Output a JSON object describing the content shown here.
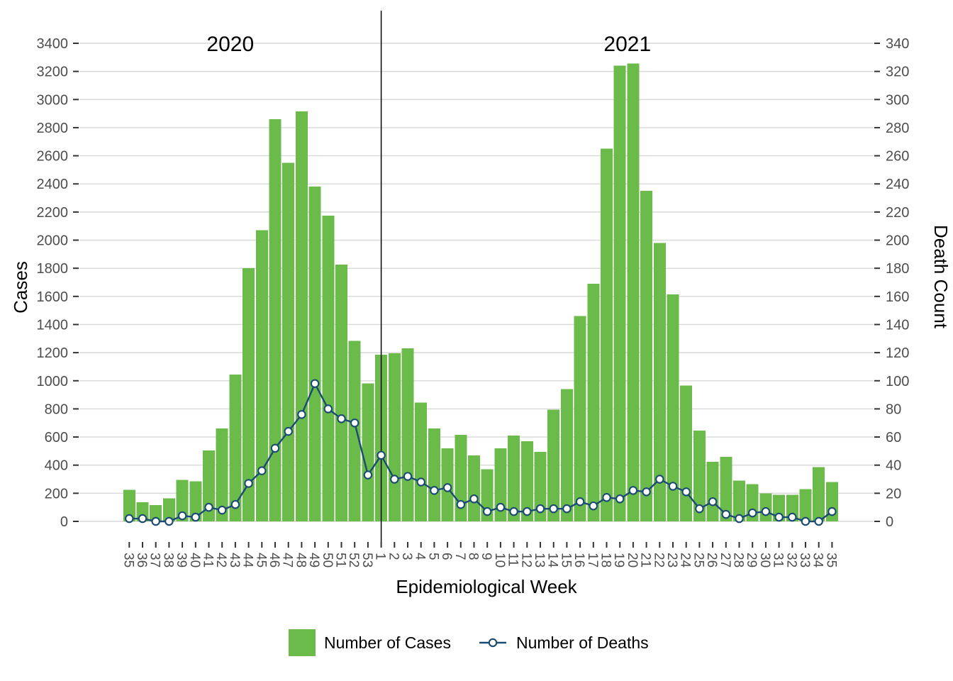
{
  "chart_data": {
    "type": "bar",
    "subtype": "bar-plus-line-dual-axis",
    "title": "",
    "categories": [
      "35",
      "36",
      "37",
      "38",
      "39",
      "40",
      "41",
      "42",
      "43",
      "44",
      "45",
      "46",
      "47",
      "48",
      "49",
      "50",
      "51",
      "52",
      "53",
      "1",
      "2",
      "3",
      "4",
      "5",
      "6",
      "7",
      "8",
      "9",
      "10",
      "11",
      "12",
      "13",
      "14",
      "15",
      "16",
      "17",
      "18",
      "19",
      "20",
      "21",
      "22",
      "23",
      "24",
      "25",
      "26",
      "27",
      "28",
      "29",
      "30",
      "31",
      "32",
      "33",
      "34",
      "35"
    ],
    "year_groups": [
      {
        "label": "2020",
        "start_index": 0,
        "count": 19
      },
      {
        "label": "2021",
        "start_index": 19,
        "count": 35
      }
    ],
    "year_separator_at_category_index": 19,
    "series": [
      {
        "name": "Number of Cases",
        "type": "bar",
        "axis": "left",
        "color": "#6BBB4B",
        "values": [
          225,
          135,
          115,
          165,
          295,
          285,
          505,
          660,
          1045,
          1800,
          2070,
          2860,
          2550,
          2915,
          2380,
          2175,
          1825,
          1285,
          980,
          1185,
          1195,
          1230,
          845,
          660,
          520,
          615,
          470,
          370,
          520,
          610,
          570,
          495,
          795,
          940,
          1460,
          1690,
          2650,
          3240,
          3255,
          2350,
          1980,
          1615,
          965,
          645,
          425,
          460,
          290,
          265,
          200,
          190,
          190,
          230,
          385,
          280
        ]
      },
      {
        "name": "Number of Deaths",
        "type": "line",
        "marker": "open-circle",
        "axis": "right",
        "color": "#1B4A73",
        "values": [
          2,
          2,
          0,
          0,
          4,
          3,
          10,
          8,
          12,
          27,
          36,
          52,
          64,
          76,
          98,
          80,
          73,
          70,
          33,
          47,
          30,
          32,
          28,
          22,
          24,
          12,
          16,
          7,
          10,
          7,
          7,
          9,
          9,
          9,
          14,
          11,
          17,
          16,
          22,
          21,
          30,
          25,
          21,
          9,
          14,
          5,
          2,
          6,
          7,
          3,
          3,
          0,
          0,
          7
        ]
      }
    ],
    "left_axis": {
      "title": "Cases",
      "min": 0,
      "max": 3400,
      "tick_step": 200,
      "tick_labels": [
        "0",
        "200",
        "400",
        "600",
        "800",
        "1000",
        "1200",
        "1400",
        "1600",
        "1800",
        "2000",
        "2200",
        "2400",
        "2600",
        "2800",
        "3000",
        "3200",
        "3400"
      ]
    },
    "right_axis": {
      "title": "Death Count",
      "min": 0,
      "max": 340,
      "tick_step": 20,
      "tick_labels": [
        "0",
        "20",
        "40",
        "60",
        "80",
        "100",
        "120",
        "140",
        "160",
        "180",
        "200",
        "220",
        "240",
        "260",
        "280",
        "300",
        "320",
        "340"
      ]
    },
    "x_axis": {
      "title": "Epidemiological Week",
      "tick_label_rotation_deg": 90
    },
    "grid": "horizontal",
    "legend_position": "bottom",
    "legend": {
      "cases_label": "Number of Cases",
      "deaths_label": "Number of Deaths"
    },
    "colors": {
      "bar": "#6BBB4B",
      "line": "#1B4A73",
      "marker_fill": "#FFFFFF",
      "grid": "#D8D8D8",
      "tick_mark": "#333333",
      "tick_label": "#4D4D4D",
      "title_text": "#000000",
      "separator": "#000000",
      "background": "#FFFFFF"
    }
  }
}
